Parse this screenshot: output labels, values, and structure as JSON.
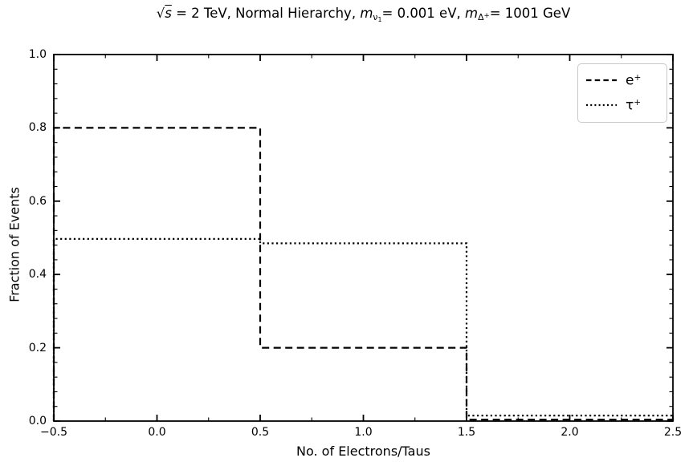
{
  "figure": {
    "background": "#ffffff",
    "foreground": "#000000"
  },
  "title": {
    "text": "√s = 2 TeV, Normal Hierarchy, m_ν1 = 0.001 eV, m_Δ+ = 1001 GeV",
    "segments": [
      {
        "text": "√",
        "style": "normal"
      },
      {
        "text": "s",
        "style": "sqrt-arg"
      },
      {
        "text": " = 2 TeV, Normal Hierarchy, ",
        "style": "normal"
      },
      {
        "text": "m",
        "style": "italic"
      },
      {
        "text": "ν",
        "style": "sub"
      },
      {
        "text": "1",
        "style": "subsub"
      },
      {
        "text": "= 0.001 eV, ",
        "style": "normal"
      },
      {
        "text": "m",
        "style": "italic"
      },
      {
        "text": "Δ",
        "style": "sub"
      },
      {
        "text": "+",
        "style": "subsup"
      },
      {
        "text": "= 1001 GeV",
        "style": "normal"
      }
    ]
  },
  "chart_data": {
    "type": "step-histogram",
    "title": "√s = 2 TeV, Normal Hierarchy, m_ν1 = 0.001 eV, m_Δ+ = 1001 GeV",
    "xlabel": "No. of Electrons/Taus",
    "ylabel": "Fraction of Events",
    "xlim": [
      -0.5,
      2.5
    ],
    "ylim": [
      0.0,
      1.0
    ],
    "xtick_labels": [
      "−0.5",
      "0.0",
      "0.5",
      "1.0",
      "1.5",
      "2.0",
      "2.5"
    ],
    "xtick_values": [
      -0.5,
      0.0,
      0.5,
      1.0,
      1.5,
      2.0,
      2.5
    ],
    "ytick_labels": [
      "0.0",
      "0.2",
      "0.4",
      "0.6",
      "0.8",
      "1.0"
    ],
    "ytick_values": [
      0.0,
      0.2,
      0.4,
      0.6,
      0.8,
      1.0
    ],
    "minor_x_step": 0.25,
    "minor_y_step": 0.04,
    "grid": false,
    "tick_direction": "in",
    "bin_edges": [
      -0.5,
      0.5,
      1.5,
      2.5
    ],
    "categories": [
      "0",
      "1",
      "2"
    ],
    "series": [
      {
        "name": "e+",
        "linestyle": "dashed",
        "color": "#000000",
        "values": [
          0.8,
          0.2,
          0.004
        ]
      },
      {
        "name": "τ+",
        "linestyle": "dotted",
        "color": "#000000",
        "values": [
          0.497,
          0.485,
          0.015
        ]
      }
    ],
    "legend": {
      "position": "upper right",
      "entries": [
        {
          "base": "e",
          "sup": "+",
          "linestyle": "dashed"
        },
        {
          "base": "τ",
          "sup": "+",
          "linestyle": "dotted"
        }
      ]
    }
  }
}
